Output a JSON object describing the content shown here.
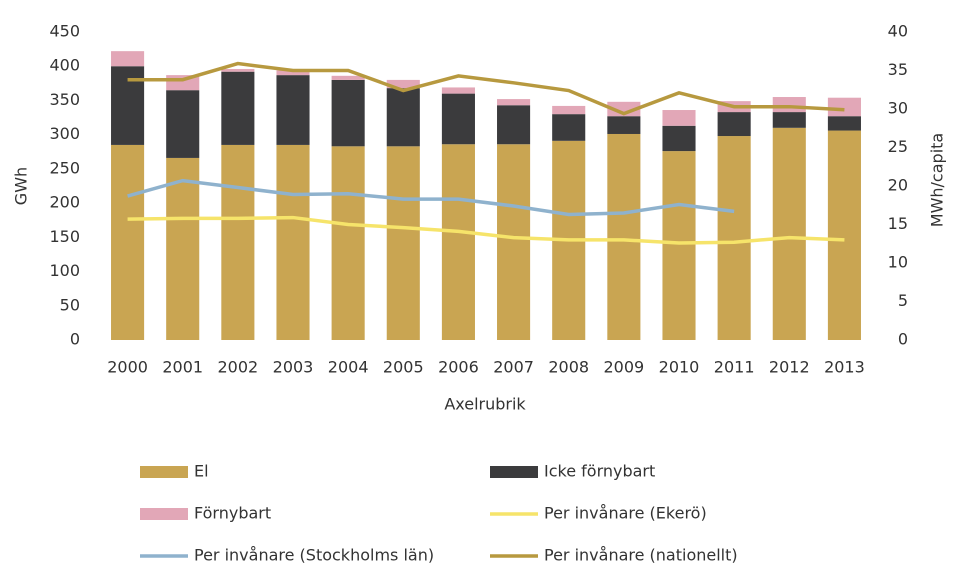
{
  "chart_data": {
    "type": "bar",
    "stacked": true,
    "categories": [
      "2000",
      "2001",
      "2002",
      "2003",
      "2004",
      "2005",
      "2006",
      "2007",
      "2008",
      "2009",
      "2010",
      "2011",
      "2012",
      "2013"
    ],
    "series": [
      {
        "name": "El",
        "color": "#c9a552",
        "values": [
          285,
          266,
          285,
          285,
          283,
          283,
          286,
          286,
          291,
          301,
          276,
          298,
          310,
          306
        ]
      },
      {
        "name": "Icke förnybart",
        "color": "#3b3b3d",
        "values": [
          115,
          99,
          107,
          102,
          97,
          85,
          74,
          57,
          39,
          26,
          37,
          35,
          23,
          21
        ]
      },
      {
        "name": "Förnybart",
        "color": "#e2a7b7",
        "values": [
          22,
          22,
          4,
          7,
          6,
          12,
          9,
          9,
          12,
          21,
          23,
          16,
          22,
          27
        ]
      },
      {
        "name": "Per invånare (Ekerö)",
        "color": "#f6e46a",
        "axis": "y2",
        "values": [
          15.7,
          15.8,
          15.8,
          15.9,
          15.0,
          14.6,
          14.1,
          13.3,
          13.0,
          13.0,
          12.6,
          12.7,
          13.3,
          13.0
        ]
      },
      {
        "name": "Per invånare (Stockholms län)",
        "color": "#8fb2cd",
        "axis": "y2",
        "values": [
          18.7,
          20.7,
          19.8,
          18.9,
          19.0,
          18.3,
          18.3,
          17.4,
          16.3,
          16.5,
          17.6,
          16.7,
          null,
          null
        ]
      },
      {
        "name": "Per invånare (nationellt)",
        "color": "#b7993f",
        "axis": "y2",
        "values": [
          33.8,
          33.8,
          35.9,
          35.0,
          35.0,
          32.4,
          34.3,
          33.4,
          32.4,
          29.4,
          32.1,
          30.3,
          30.3,
          29.9
        ]
      }
    ],
    "ylabel": "GWh",
    "y2label": "MWh/capita",
    "xlabel": "Axelrubrik",
    "ylim": [
      0,
      450
    ],
    "yticks": [
      0,
      50,
      100,
      150,
      200,
      250,
      300,
      350,
      400,
      450
    ],
    "y2lim": [
      0,
      40
    ],
    "y2ticks": [
      0,
      5,
      10,
      15,
      20,
      25,
      30,
      35,
      40
    ],
    "grid": false,
    "legend": "bottom"
  }
}
